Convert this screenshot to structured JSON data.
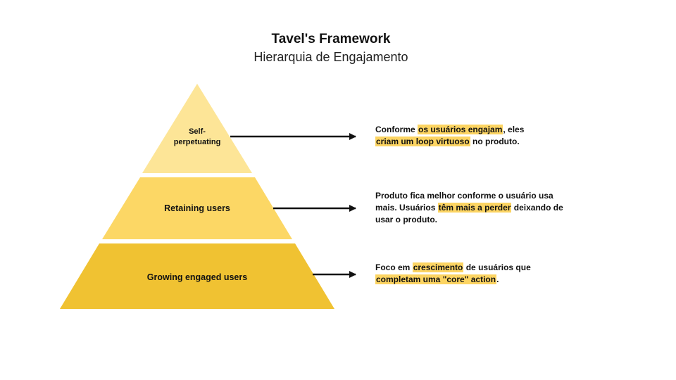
{
  "header": {
    "title": "Tavel's Framework",
    "subtitle": "Hierarquia de Engajamento"
  },
  "colors": {
    "tier_top": "#fde597",
    "tier_middle": "#fcd765",
    "tier_bottom": "#f0c232",
    "highlight": "#fcd462",
    "arrow": "#111111"
  },
  "pyramid": {
    "tiers": [
      {
        "label_line1": "Self-",
        "label_line2": "perpetuating"
      },
      {
        "label": "Retaining users"
      },
      {
        "label": "Growing engaged users"
      }
    ]
  },
  "descriptions": [
    {
      "t1": "Conforme ",
      "h1": "os usuários engajam",
      "t2": ", eles ",
      "h2": "criam um loop virtuoso",
      "t3": " no produto."
    },
    {
      "t1": "Produto fica melhor conforme o usuário usa mais. Usuários ",
      "h1": "têm mais a perder",
      "t2": " deixando de usar o produto."
    },
    {
      "t1": "Foco em ",
      "h1": "crescimento",
      "t2": " de usuários que ",
      "h2": "completam uma \"core\" action",
      "t3": "."
    }
  ]
}
